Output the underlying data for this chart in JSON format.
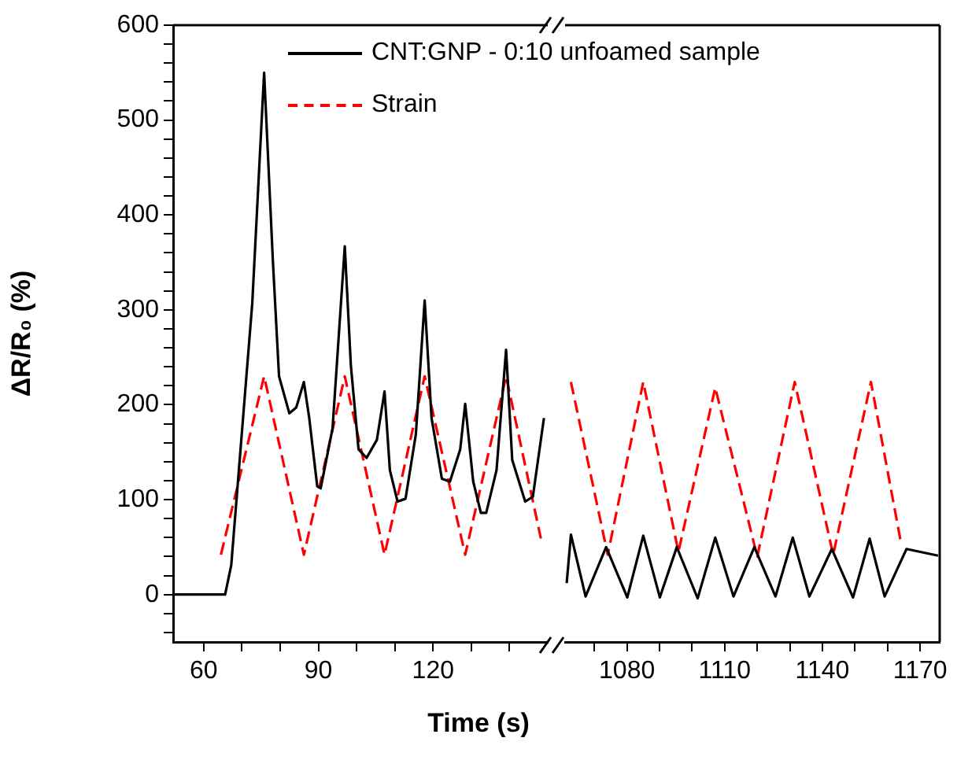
{
  "chart_data": [
    {
      "type": "line",
      "ylabel": "ΔR/R₀ (%)",
      "xlabel": "Time (s)",
      "legend": "top",
      "marker": "none",
      "grid": false,
      "xlim": [
        52,
        150
      ],
      "xticks": [
        60,
        {
          "value": 70,
          "label": null
        },
        {
          "value": 80,
          "label": null
        },
        90,
        {
          "value": 100,
          "label": null
        },
        {
          "value": 110,
          "label": null
        },
        120,
        {
          "value": 130,
          "label": null
        },
        {
          "value": 140,
          "label": null
        }
      ],
      "ylim": [
        -50,
        600
      ],
      "yticks": [
        {
          "value": -40,
          "label": null
        },
        {
          "value": -20,
          "label": null
        },
        0,
        {
          "value": 20,
          "label": null
        },
        {
          "value": 40,
          "label": null
        },
        {
          "value": 60,
          "label": null
        },
        {
          "value": 80,
          "label": null
        },
        100,
        {
          "value": 120,
          "label": null
        },
        {
          "value": 140,
          "label": null
        },
        {
          "value": 160,
          "label": null
        },
        {
          "value": 180,
          "label": null
        },
        200,
        {
          "value": 220,
          "label": null
        },
        {
          "value": 240,
          "label": null
        },
        {
          "value": 260,
          "label": null
        },
        {
          "value": 280,
          "label": null
        },
        300,
        {
          "value": 320,
          "label": null
        },
        {
          "value": 340,
          "label": null
        },
        {
          "value": 360,
          "label": null
        },
        {
          "value": 380,
          "label": null
        },
        400,
        {
          "value": 420,
          "label": null
        },
        {
          "value": 440,
          "label": null
        },
        {
          "value": 460,
          "label": null
        },
        {
          "value": 480,
          "label": null
        },
        500,
        {
          "value": 520,
          "label": null
        },
        {
          "value": 540,
          "label": null
        },
        {
          "value": 560,
          "label": null
        },
        {
          "value": 580,
          "label": null
        },
        600
      ],
      "series": [
        {
          "name": "CNT:GNP - 0:10 unfoamed sample",
          "color": "#000000",
          "line_style": "solid",
          "x": [
            52,
            65.6,
            67.2,
            72.7,
            75.8,
            78.1,
            79.7,
            82.4,
            84.2,
            86.2,
            87.6,
            89.7,
            90.6,
            93.7,
            96.9,
            98.5,
            100.5,
            102.6,
            105.3,
            107.3,
            108.7,
            110.7,
            112.8,
            115.5,
            117.8,
            119.6,
            122.3,
            124.4,
            127.1,
            128.4,
            130.5,
            132.5,
            133.9,
            136.6,
            139.1,
            140.7,
            144.1,
            146.1,
            149
          ],
          "values": [
            0,
            0,
            31,
            307,
            550,
            351,
            230,
            191,
            197,
            224,
            186,
            114,
            112,
            175,
            367,
            241,
            153,
            144,
            163,
            214,
            131,
            98,
            101,
            169,
            310,
            186,
            122,
            119,
            153,
            201,
            119,
            86,
            86,
            131,
            258,
            142,
            98,
            103,
            186
          ]
        },
        {
          "name": "Strain",
          "color": "#ff0000",
          "line_style": "dashed",
          "x": [
            64.5,
            75.8,
            86.2,
            96.9,
            107.3,
            117.8,
            128.4,
            139.1,
            148.2
          ],
          "values": [
            42,
            230,
            42,
            230,
            42,
            230,
            42,
            230,
            59
          ]
        }
      ]
    },
    {
      "type": "line",
      "marker": "none",
      "grid": false,
      "tick_labels": "x",
      "xlim": [
        1061,
        1176
      ],
      "xticks": [
        {
          "value": 1070,
          "label": null
        },
        1080,
        {
          "value": 1090,
          "label": null
        },
        {
          "value": 1100,
          "label": null
        },
        1110,
        {
          "value": 1120,
          "label": null
        },
        {
          "value": 1130,
          "label": null
        },
        1140,
        {
          "value": 1150,
          "label": null
        },
        {
          "value": 1160,
          "label": null
        },
        1170
      ],
      "ylim": [
        -50,
        600
      ],
      "series": [
        {
          "color": "#000000",
          "line_style": "solid",
          "x": [
            1061.5,
            1062.8,
            1067.3,
            1073.6,
            1080.1,
            1085.0,
            1090.1,
            1095.3,
            1101.7,
            1107.1,
            1112.7,
            1119.1,
            1125.6,
            1130.9,
            1136.0,
            1142.9,
            1149.4,
            1154.5,
            1159.1,
            1165.8,
            1175.5
          ],
          "values": [
            12,
            63,
            -2,
            50,
            -3,
            62,
            -3,
            50,
            -4,
            60,
            -2,
            50,
            -2,
            60,
            -2,
            48,
            -3,
            59,
            -2,
            48,
            41
          ]
        },
        {
          "color": "#ff0000",
          "line_style": "dashed",
          "x": [
            1062.8,
            1074.1,
            1085.0,
            1095.8,
            1107.1,
            1120.0,
            1131.5,
            1143.3,
            1154.9,
            1164.2
          ],
          "values": [
            224,
            42,
            224,
            45,
            218,
            40,
            224,
            42,
            224,
            53
          ]
        }
      ]
    }
  ]
}
